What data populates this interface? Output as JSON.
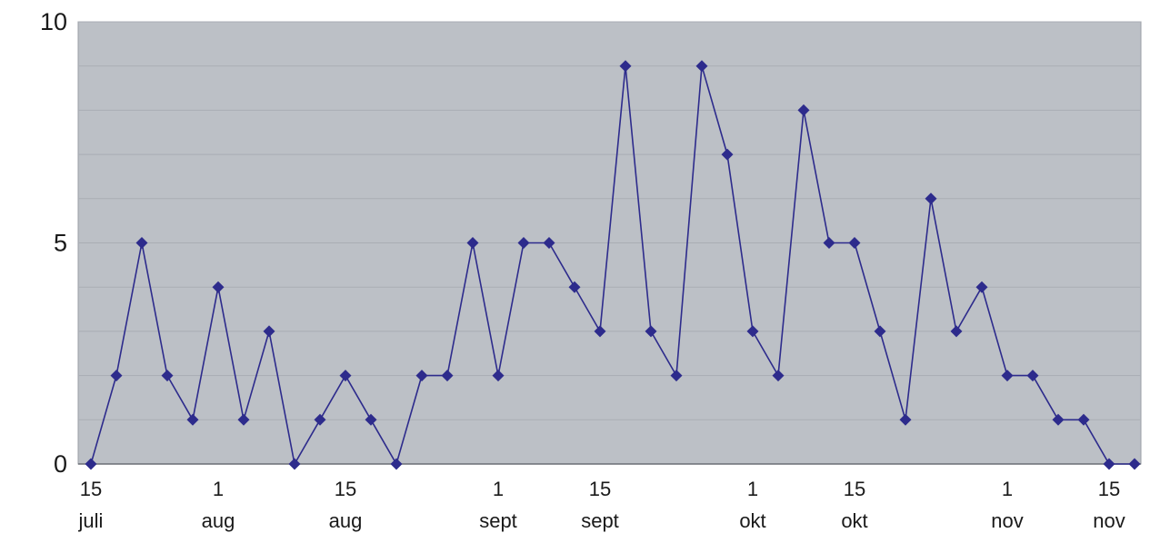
{
  "chart_data": {
    "type": "line",
    "title": "",
    "xlabel": "",
    "ylabel": "",
    "ylim": [
      0,
      10
    ],
    "y_ticks": [
      "0",
      "5",
      "10"
    ],
    "grid": "horizontal",
    "x_ticks": [
      {
        "day": "15",
        "month": "juli"
      },
      {
        "day": "1",
        "month": "aug"
      },
      {
        "day": "15",
        "month": "aug"
      },
      {
        "day": "1",
        "month": "sept"
      },
      {
        "day": "15",
        "month": "sept"
      },
      {
        "day": "1",
        "month": "okt"
      },
      {
        "day": "15",
        "month": "okt"
      },
      {
        "day": "1",
        "month": "nov"
      },
      {
        "day": "15",
        "month": "nov"
      }
    ],
    "series": [
      {
        "values": [
          0,
          2,
          5,
          2,
          1,
          4,
          1,
          3,
          0,
          1,
          2,
          1,
          0,
          2,
          2,
          5,
          2,
          5,
          5,
          4,
          3,
          9,
          3,
          2,
          9,
          7,
          3,
          2,
          8,
          5,
          5,
          3,
          1,
          6,
          3,
          4,
          2,
          2,
          1,
          1,
          0,
          0
        ]
      }
    ],
    "colors": {
      "plot_bg": "#bcc0c6",
      "grid": "#a9adb4",
      "line": "#2d2b8c",
      "marker": "#2d2b8c"
    }
  }
}
